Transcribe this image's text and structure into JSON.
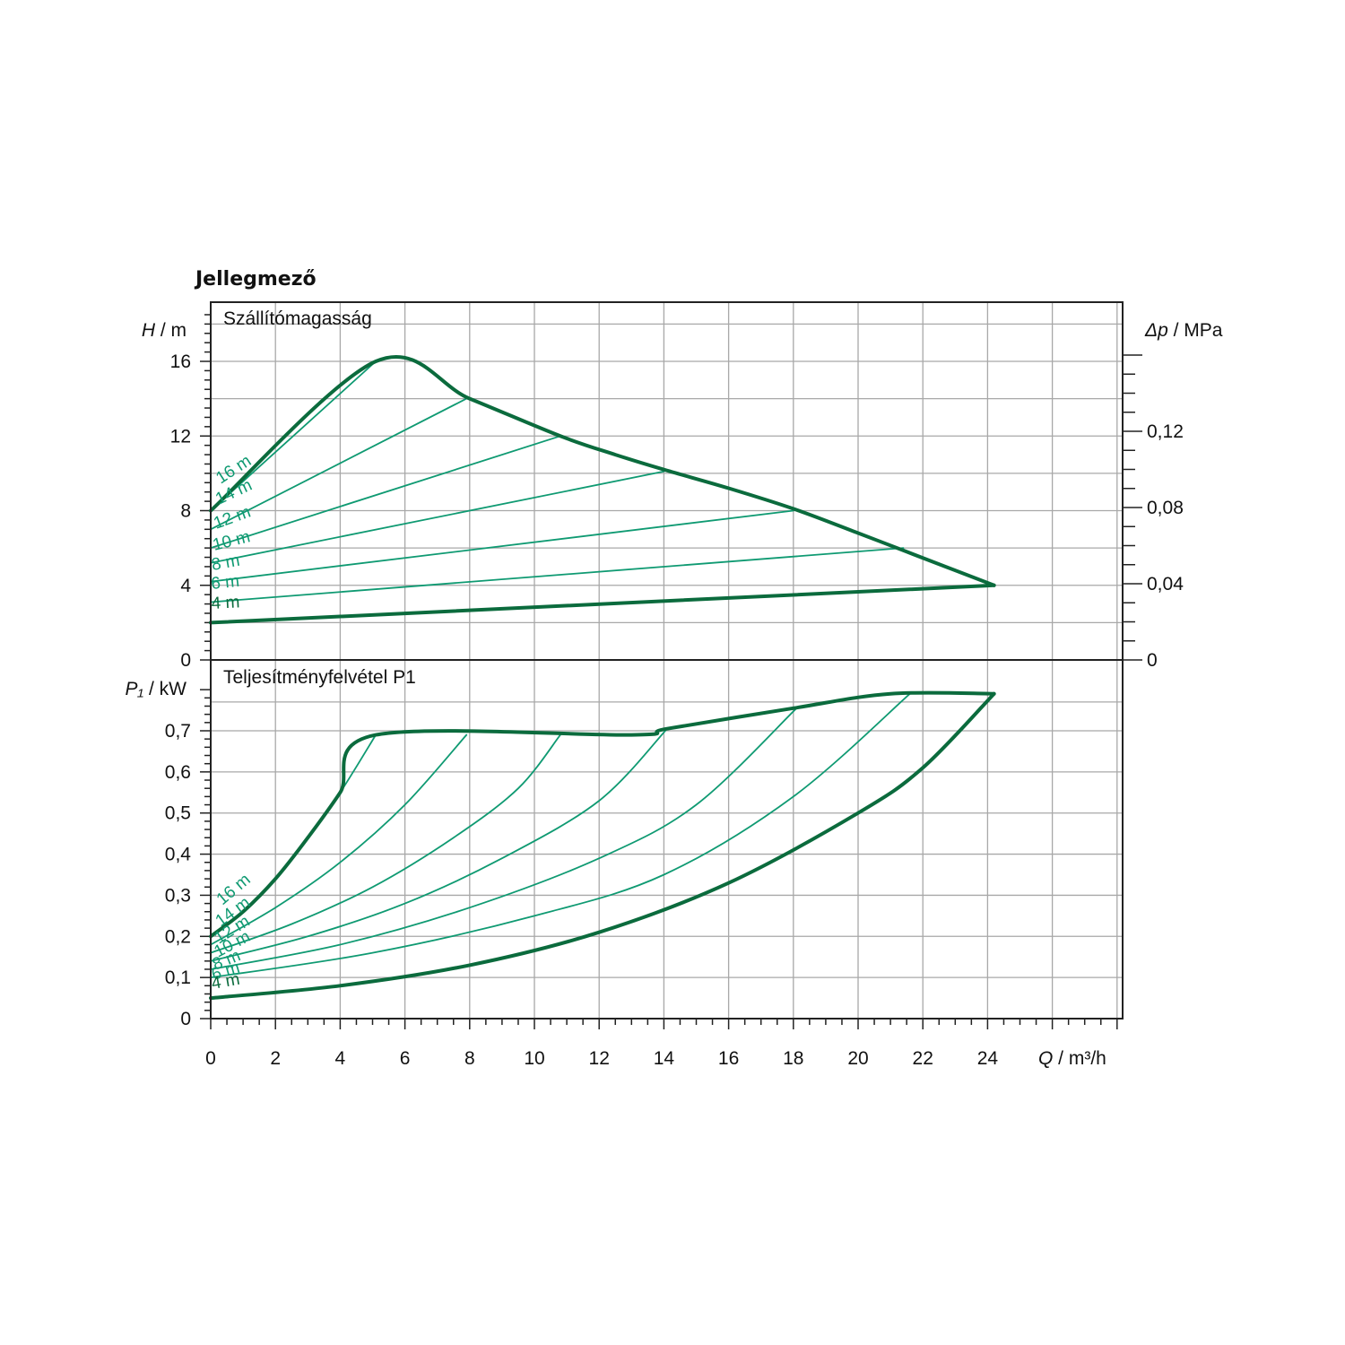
{
  "chart_data": {
    "title": "Jellegmező",
    "type": "line",
    "colors": {
      "envelope": "#0b6b3d",
      "curve": "#0f9a72",
      "grid": "#a8a8a8",
      "frame": "#222222"
    },
    "x_axis": {
      "label_symbol": "Q",
      "label_unit": "/ m³/h",
      "range": [
        0,
        28
      ],
      "ticks": [
        0,
        2,
        4,
        6,
        8,
        10,
        12,
        14,
        16,
        18,
        20,
        22,
        24
      ],
      "tick_labels": [
        "0",
        "2",
        "4",
        "6",
        "8",
        "10",
        "12",
        "14",
        "16",
        "18",
        "20",
        "22",
        "24"
      ]
    },
    "head_panel": {
      "title": "Szállítómagasság",
      "y_label_symbol": "H",
      "y_label_unit": "/ m",
      "y_range": [
        0,
        19
      ],
      "y_ticks": [
        0,
        4,
        8,
        12,
        16
      ],
      "y_tick_labels": [
        "0",
        "4",
        "8",
        "12",
        "16"
      ],
      "right_label_symbol": "Δp",
      "right_label_unit": "/ MPa",
      "right_ticks": [
        0,
        0.04,
        0.08,
        0.12
      ],
      "right_tick_labels": [
        "0",
        "0,04",
        "0,08",
        "0,12"
      ],
      "max_envelope": [
        [
          0,
          8
        ],
        [
          5.1,
          16
        ],
        [
          8,
          14
        ],
        [
          10.8,
          12
        ],
        [
          12.5,
          11
        ],
        [
          14,
          10.2
        ],
        [
          16,
          9.2
        ],
        [
          18,
          8.1
        ],
        [
          20,
          6.8
        ],
        [
          21.5,
          5.8
        ],
        [
          24.2,
          4
        ]
      ],
      "min_envelope": [
        [
          0,
          2
        ],
        [
          24.2,
          4
        ]
      ],
      "curves": [
        {
          "label": "16 m",
          "points": [
            [
              0,
              8
            ],
            [
              5.1,
              16
            ]
          ]
        },
        {
          "label": "14 m",
          "points": [
            [
              0,
              7
            ],
            [
              7.9,
              14
            ]
          ]
        },
        {
          "label": "12 m",
          "points": [
            [
              0,
              6
            ],
            [
              10.8,
              12
            ]
          ]
        },
        {
          "label": "10 m",
          "points": [
            [
              0,
              5.2
            ],
            [
              14,
              10.1
            ]
          ]
        },
        {
          "label": "8 m",
          "points": [
            [
              0,
              4.2
            ],
            [
              18,
              8
            ]
          ]
        },
        {
          "label": "6 m",
          "points": [
            [
              0,
              3.1
            ],
            [
              21.4,
              6
            ]
          ]
        },
        {
          "label": "4 m",
          "points": [
            [
              0,
              2
            ],
            [
              24.2,
              4
            ]
          ]
        }
      ]
    },
    "power_panel": {
      "title": "Teljesítményfelvétel P1",
      "y_label_symbol": "P₁",
      "y_label_unit": "/ kW",
      "y_range": [
        0,
        0.8
      ],
      "y_ticks": [
        0,
        0.1,
        0.2,
        0.3,
        0.4,
        0.5,
        0.6,
        0.7
      ],
      "y_tick_labels": [
        "0",
        "0,1",
        "0,2",
        "0,3",
        "0,4",
        "0,5",
        "0,6",
        "0,7"
      ],
      "max_envelope": [
        [
          0,
          0.2
        ],
        [
          1,
          0.26
        ],
        [
          2,
          0.34
        ],
        [
          3,
          0.44
        ],
        [
          4,
          0.55
        ],
        [
          5.1,
          0.69
        ],
        [
          13,
          0.69
        ],
        [
          14.1,
          0.705
        ],
        [
          18,
          0.755
        ],
        [
          21,
          0.79
        ],
        [
          24.2,
          0.79
        ]
      ],
      "min_envelope": [
        [
          0,
          0.05
        ],
        [
          4,
          0.08
        ],
        [
          8,
          0.13
        ],
        [
          12,
          0.21
        ],
        [
          16,
          0.33
        ],
        [
          20,
          0.5
        ],
        [
          22,
          0.61
        ],
        [
          24.2,
          0.79
        ]
      ],
      "curves": [
        {
          "label": "16 m",
          "points": [
            [
              0,
              0.2
            ],
            [
              1,
              0.26
            ],
            [
              2,
              0.34
            ],
            [
              3,
              0.44
            ],
            [
              4,
              0.55
            ],
            [
              5.1,
              0.69
            ]
          ]
        },
        {
          "label": "14 m",
          "points": [
            [
              0,
              0.18
            ],
            [
              2,
              0.27
            ],
            [
              4,
              0.38
            ],
            [
              6,
              0.52
            ],
            [
              7.9,
              0.69
            ]
          ]
        },
        {
          "label": "12 m",
          "points": [
            [
              0,
              0.16
            ],
            [
              2.5,
              0.23
            ],
            [
              5,
              0.32
            ],
            [
              7.5,
              0.44
            ],
            [
              9.5,
              0.56
            ],
            [
              10.8,
              0.69
            ]
          ]
        },
        {
          "label": "10 m",
          "points": [
            [
              0,
              0.14
            ],
            [
              3,
              0.2
            ],
            [
              6,
              0.28
            ],
            [
              9,
              0.39
            ],
            [
              12,
              0.53
            ],
            [
              14.1,
              0.705
            ]
          ]
        },
        {
          "label": "8 m",
          "points": [
            [
              0,
              0.12
            ],
            [
              4,
              0.18
            ],
            [
              8,
              0.27
            ],
            [
              12,
              0.39
            ],
            [
              15,
              0.52
            ],
            [
              18.1,
              0.755
            ]
          ]
        },
        {
          "label": "6 m",
          "points": [
            [
              0,
              0.1
            ],
            [
              5,
              0.16
            ],
            [
              10,
              0.25
            ],
            [
              14,
              0.35
            ],
            [
              18,
              0.54
            ],
            [
              21.6,
              0.79
            ]
          ]
        },
        {
          "label": "4 m",
          "points": [
            [
              0,
              0.05
            ],
            [
              4,
              0.08
            ],
            [
              8,
              0.13
            ],
            [
              12,
              0.21
            ],
            [
              16,
              0.33
            ],
            [
              20,
              0.5
            ],
            [
              22,
              0.61
            ],
            [
              24.2,
              0.79
            ]
          ]
        }
      ]
    }
  }
}
